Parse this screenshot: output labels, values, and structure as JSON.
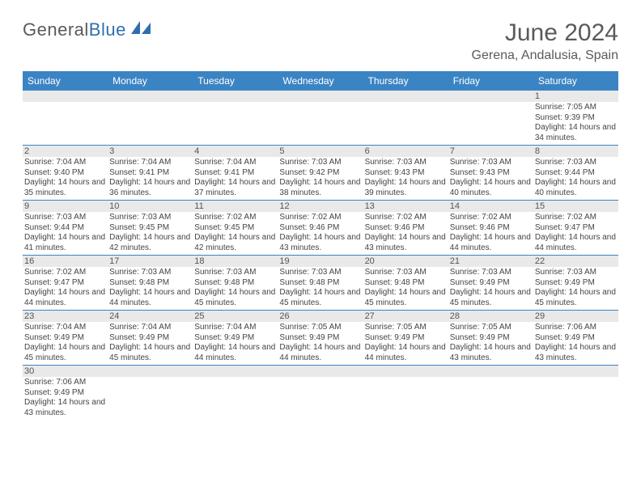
{
  "logo": {
    "part1": "General",
    "part2": "Blue"
  },
  "title": "June 2024",
  "location": "Gerena, Andalusia, Spain",
  "colors": {
    "header_bg": "#3b84c4",
    "band_bg": "#e9e9e9",
    "row_border": "#3b84c4",
    "text": "#444444",
    "title_text": "#5a5a5a"
  },
  "days_of_week": [
    "Sunday",
    "Monday",
    "Tuesday",
    "Wednesday",
    "Thursday",
    "Friday",
    "Saturday"
  ],
  "labels": {
    "sunrise": "Sunrise:",
    "sunset": "Sunset:",
    "daylight": "Daylight:"
  },
  "weeks": [
    [
      null,
      null,
      null,
      null,
      null,
      null,
      {
        "n": "1",
        "sunrise": "7:05 AM",
        "sunset": "9:39 PM",
        "daylight": "14 hours and 34 minutes."
      }
    ],
    [
      {
        "n": "2",
        "sunrise": "7:04 AM",
        "sunset": "9:40 PM",
        "daylight": "14 hours and 35 minutes."
      },
      {
        "n": "3",
        "sunrise": "7:04 AM",
        "sunset": "9:41 PM",
        "daylight": "14 hours and 36 minutes."
      },
      {
        "n": "4",
        "sunrise": "7:04 AM",
        "sunset": "9:41 PM",
        "daylight": "14 hours and 37 minutes."
      },
      {
        "n": "5",
        "sunrise": "7:03 AM",
        "sunset": "9:42 PM",
        "daylight": "14 hours and 38 minutes."
      },
      {
        "n": "6",
        "sunrise": "7:03 AM",
        "sunset": "9:43 PM",
        "daylight": "14 hours and 39 minutes."
      },
      {
        "n": "7",
        "sunrise": "7:03 AM",
        "sunset": "9:43 PM",
        "daylight": "14 hours and 40 minutes."
      },
      {
        "n": "8",
        "sunrise": "7:03 AM",
        "sunset": "9:44 PM",
        "daylight": "14 hours and 40 minutes."
      }
    ],
    [
      {
        "n": "9",
        "sunrise": "7:03 AM",
        "sunset": "9:44 PM",
        "daylight": "14 hours and 41 minutes."
      },
      {
        "n": "10",
        "sunrise": "7:03 AM",
        "sunset": "9:45 PM",
        "daylight": "14 hours and 42 minutes."
      },
      {
        "n": "11",
        "sunrise": "7:02 AM",
        "sunset": "9:45 PM",
        "daylight": "14 hours and 42 minutes."
      },
      {
        "n": "12",
        "sunrise": "7:02 AM",
        "sunset": "9:46 PM",
        "daylight": "14 hours and 43 minutes."
      },
      {
        "n": "13",
        "sunrise": "7:02 AM",
        "sunset": "9:46 PM",
        "daylight": "14 hours and 43 minutes."
      },
      {
        "n": "14",
        "sunrise": "7:02 AM",
        "sunset": "9:46 PM",
        "daylight": "14 hours and 44 minutes."
      },
      {
        "n": "15",
        "sunrise": "7:02 AM",
        "sunset": "9:47 PM",
        "daylight": "14 hours and 44 minutes."
      }
    ],
    [
      {
        "n": "16",
        "sunrise": "7:02 AM",
        "sunset": "9:47 PM",
        "daylight": "14 hours and 44 minutes."
      },
      {
        "n": "17",
        "sunrise": "7:03 AM",
        "sunset": "9:48 PM",
        "daylight": "14 hours and 44 minutes."
      },
      {
        "n": "18",
        "sunrise": "7:03 AM",
        "sunset": "9:48 PM",
        "daylight": "14 hours and 45 minutes."
      },
      {
        "n": "19",
        "sunrise": "7:03 AM",
        "sunset": "9:48 PM",
        "daylight": "14 hours and 45 minutes."
      },
      {
        "n": "20",
        "sunrise": "7:03 AM",
        "sunset": "9:48 PM",
        "daylight": "14 hours and 45 minutes."
      },
      {
        "n": "21",
        "sunrise": "7:03 AM",
        "sunset": "9:49 PM",
        "daylight": "14 hours and 45 minutes."
      },
      {
        "n": "22",
        "sunrise": "7:03 AM",
        "sunset": "9:49 PM",
        "daylight": "14 hours and 45 minutes."
      }
    ],
    [
      {
        "n": "23",
        "sunrise": "7:04 AM",
        "sunset": "9:49 PM",
        "daylight": "14 hours and 45 minutes."
      },
      {
        "n": "24",
        "sunrise": "7:04 AM",
        "sunset": "9:49 PM",
        "daylight": "14 hours and 45 minutes."
      },
      {
        "n": "25",
        "sunrise": "7:04 AM",
        "sunset": "9:49 PM",
        "daylight": "14 hours and 44 minutes."
      },
      {
        "n": "26",
        "sunrise": "7:05 AM",
        "sunset": "9:49 PM",
        "daylight": "14 hours and 44 minutes."
      },
      {
        "n": "27",
        "sunrise": "7:05 AM",
        "sunset": "9:49 PM",
        "daylight": "14 hours and 44 minutes."
      },
      {
        "n": "28",
        "sunrise": "7:05 AM",
        "sunset": "9:49 PM",
        "daylight": "14 hours and 43 minutes."
      },
      {
        "n": "29",
        "sunrise": "7:06 AM",
        "sunset": "9:49 PM",
        "daylight": "14 hours and 43 minutes."
      }
    ],
    [
      {
        "n": "30",
        "sunrise": "7:06 AM",
        "sunset": "9:49 PM",
        "daylight": "14 hours and 43 minutes."
      },
      null,
      null,
      null,
      null,
      null,
      null
    ]
  ]
}
